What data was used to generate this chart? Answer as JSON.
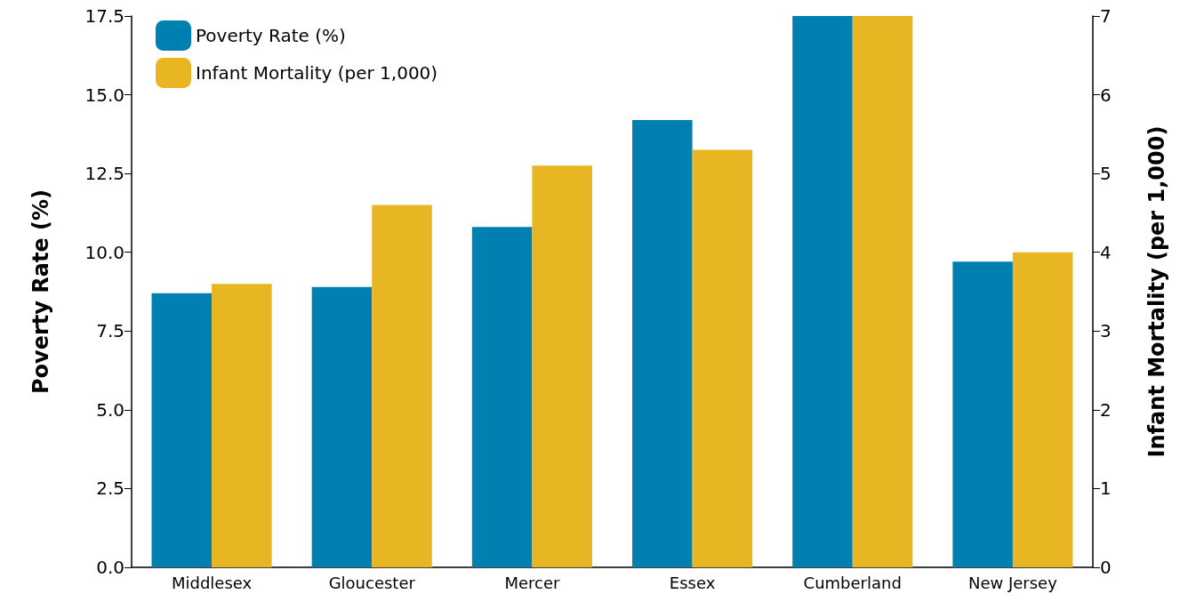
{
  "chart_data": {
    "type": "bar",
    "categories": [
      "Middlesex",
      "Gloucester",
      "Mercer",
      "Essex",
      "Cumberland",
      "New Jersey"
    ],
    "series": [
      {
        "name": "Poverty Rate (%)",
        "color": "#0080b0",
        "values": [
          8.7,
          8.9,
          10.8,
          14.2,
          17.5,
          9.7
        ]
      },
      {
        "name": "Infant Mortality (per 1,000)",
        "color": "#e8b623",
        "axis": "y2",
        "values": [
          3.6,
          4.6,
          5.1,
          5.3,
          7.0,
          4.0
        ]
      }
    ],
    "ylabel": "Poverty Rate (%)",
    "y2label": "Infant Mortality (per 1,000)",
    "ylim": [
      0,
      17.5
    ],
    "yticks": [
      {
        "value": 0,
        "label": "0.0"
      },
      2.5,
      {
        "value": 5,
        "label": "5.0"
      },
      7.5,
      {
        "value": 10,
        "label": "10.0"
      },
      12.5,
      {
        "value": 15,
        "label": "15.0"
      },
      17.5
    ],
    "y2lim": [
      0,
      7
    ],
    "y2ticks": [
      0,
      1,
      2,
      3,
      4,
      5,
      6,
      7
    ],
    "grid": false,
    "legend": "top left"
  }
}
